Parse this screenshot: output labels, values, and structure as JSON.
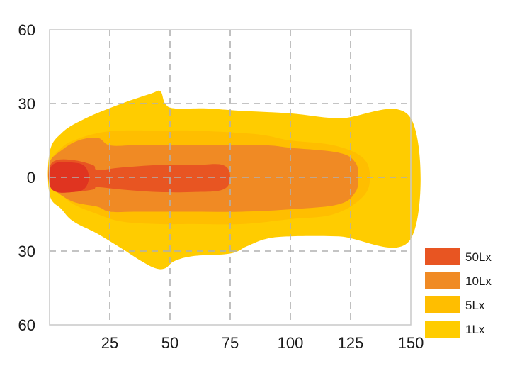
{
  "chart_data": {
    "type": "area",
    "title": "",
    "xlabel": "",
    "ylabel": "",
    "x_ticks": [
      25,
      50,
      75,
      100,
      125,
      150
    ],
    "x_tick_labels": [
      "25",
      "50",
      "75",
      "100",
      "125",
      "150"
    ],
    "y_ticks": [
      60,
      30,
      0,
      -30,
      -60
    ],
    "y_tick_labels": [
      "60",
      "30",
      "0",
      "30",
      "60"
    ],
    "xlim": [
      0,
      150
    ],
    "ylim": [
      -60,
      60
    ],
    "grid": true,
    "legend_position": "bottom-right",
    "series": [
      {
        "name": "1Lx",
        "color": "#FFCC00",
        "outline": [
          [
            0,
            10
          ],
          [
            5,
            18
          ],
          [
            15,
            24
          ],
          [
            30,
            30
          ],
          [
            42,
            34
          ],
          [
            46,
            35
          ],
          [
            48,
            30
          ],
          [
            52,
            28
          ],
          [
            65,
            28
          ],
          [
            80,
            27
          ],
          [
            100,
            26
          ],
          [
            120,
            24
          ],
          [
            150,
            24
          ],
          [
            150,
            -25
          ],
          [
            120,
            -24
          ],
          [
            100,
            -24
          ],
          [
            90,
            -25
          ],
          [
            82,
            -28
          ],
          [
            75,
            -31
          ],
          [
            60,
            -32
          ],
          [
            52,
            -34
          ],
          [
            48,
            -37
          ],
          [
            44,
            -37
          ],
          [
            38,
            -34
          ],
          [
            30,
            -29
          ],
          [
            20,
            -23
          ],
          [
            10,
            -18
          ],
          [
            5,
            -13
          ],
          [
            0,
            -7
          ]
        ]
      },
      {
        "name": "5Lx",
        "color": "#FFBE00",
        "outline": [
          [
            0,
            6
          ],
          [
            5,
            12
          ],
          [
            10,
            15
          ],
          [
            20,
            18
          ],
          [
            30,
            19
          ],
          [
            45,
            19
          ],
          [
            60,
            19
          ],
          [
            80,
            18
          ],
          [
            90,
            17
          ],
          [
            100,
            15
          ],
          [
            118,
            13
          ],
          [
            130,
            8
          ],
          [
            133,
            0
          ],
          [
            130,
            -8
          ],
          [
            118,
            -15
          ],
          [
            100,
            -17
          ],
          [
            80,
            -19
          ],
          [
            60,
            -19
          ],
          [
            45,
            -19
          ],
          [
            30,
            -18
          ],
          [
            20,
            -15
          ],
          [
            10,
            -11
          ],
          [
            5,
            -7
          ],
          [
            0,
            -3
          ]
        ]
      },
      {
        "name": "10Lx",
        "color": "#F08A24",
        "outline": [
          [
            0,
            6
          ],
          [
            5,
            11
          ],
          [
            12,
            15
          ],
          [
            20,
            16
          ],
          [
            25,
            13
          ],
          [
            35,
            13
          ],
          [
            50,
            13
          ],
          [
            70,
            13
          ],
          [
            90,
            13
          ],
          [
            100,
            12
          ],
          [
            120,
            10
          ],
          [
            127,
            6
          ],
          [
            128,
            0
          ],
          [
            127,
            -6
          ],
          [
            120,
            -11
          ],
          [
            100,
            -13
          ],
          [
            80,
            -14
          ],
          [
            60,
            -14
          ],
          [
            45,
            -14
          ],
          [
            35,
            -14
          ],
          [
            25,
            -14
          ],
          [
            20,
            -12
          ],
          [
            10,
            -10
          ],
          [
            3,
            -6
          ],
          [
            0,
            -3
          ]
        ]
      },
      {
        "name": "50Lx",
        "color": "#E85522",
        "outline": [
          [
            0,
            4
          ],
          [
            3,
            7
          ],
          [
            10,
            7
          ],
          [
            18,
            5
          ],
          [
            20,
            3
          ],
          [
            30,
            4
          ],
          [
            45,
            5
          ],
          [
            60,
            5
          ],
          [
            72,
            5
          ],
          [
            75,
            0
          ],
          [
            72,
            -5
          ],
          [
            60,
            -6
          ],
          [
            45,
            -6
          ],
          [
            30,
            -5
          ],
          [
            20,
            -4
          ],
          [
            18,
            -5
          ],
          [
            10,
            -6
          ],
          [
            3,
            -6
          ],
          [
            0,
            -3
          ]
        ]
      }
    ],
    "core": {
      "color": "#E03420",
      "outline": [
        [
          0,
          3
        ],
        [
          3,
          6
        ],
        [
          10,
          6
        ],
        [
          14,
          5
        ],
        [
          16,
          2
        ],
        [
          16,
          -2
        ],
        [
          14,
          -5
        ],
        [
          10,
          -6
        ],
        [
          3,
          -6
        ],
        [
          0,
          -3
        ]
      ]
    },
    "legend": [
      {
        "label": "50Lx",
        "color": "#E85522"
      },
      {
        "label": "10Lx",
        "color": "#F08A24"
      },
      {
        "label": "5Lx",
        "color": "#FFBE00"
      },
      {
        "label": "1Lx",
        "color": "#FFCC00"
      }
    ]
  }
}
